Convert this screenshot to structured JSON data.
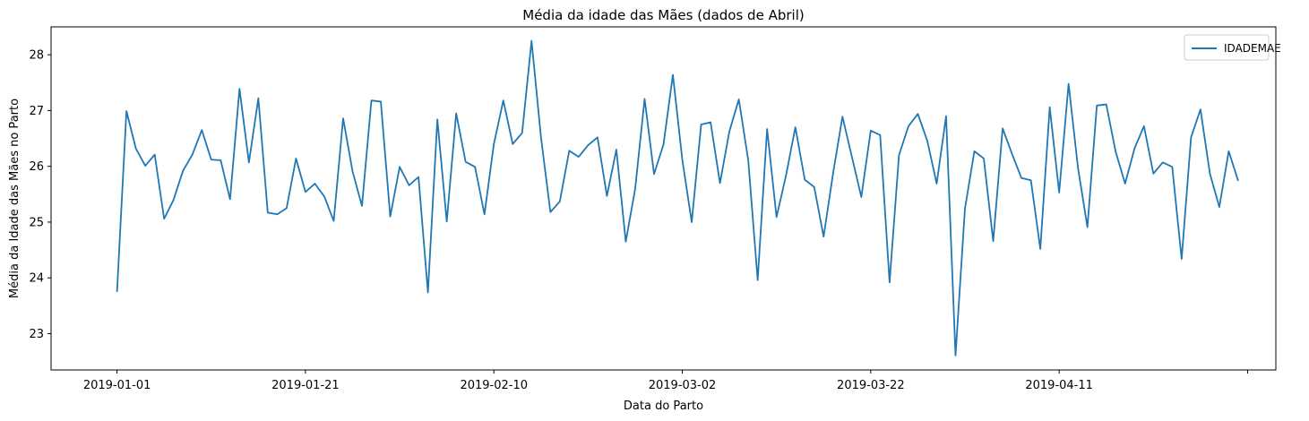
{
  "chart_data": {
    "type": "line",
    "title": "Média da idade das Mães (dados de Abril)",
    "xlabel": "Data do Parto",
    "ylabel": "Média da Idade das Mães no Parto",
    "x_start": "2019-01-01",
    "x_tick_labels": [
      "2019-01-01",
      "2019-01-21",
      "2019-02-10",
      "2019-03-02",
      "2019-03-22",
      "2019-04-11",
      ""
    ],
    "y_ticks": [
      23,
      24,
      25,
      26,
      27,
      28
    ],
    "ylim": [
      22.35,
      28.5
    ],
    "xlim": [
      "2018-12-25",
      "2019-05-04"
    ],
    "grid": false,
    "legend_position": "top-right",
    "series": [
      {
        "name": "IDADEMAE",
        "color": "#1f77b4",
        "values": [
          23.75,
          26.99,
          26.32,
          26.01,
          26.21,
          25.06,
          25.4,
          25.92,
          26.21,
          26.65,
          26.12,
          26.11,
          25.41,
          27.39,
          26.07,
          27.22,
          25.17,
          25.14,
          25.25,
          26.14,
          25.54,
          25.69,
          25.46,
          25.02,
          26.86,
          25.91,
          25.29,
          27.18,
          27.16,
          25.1,
          25.99,
          25.66,
          25.81,
          23.74,
          26.84,
          25.01,
          26.95,
          26.08,
          25.99,
          25.14,
          26.4,
          27.18,
          26.4,
          26.6,
          28.25,
          26.52,
          25.18,
          25.37,
          26.28,
          26.17,
          26.38,
          26.52,
          25.47,
          26.3,
          24.65,
          25.6,
          27.21,
          25.86,
          26.39,
          27.64,
          26.12,
          25.0,
          26.75,
          26.79,
          25.7,
          26.63,
          27.2,
          26.11,
          23.96,
          26.67,
          25.09,
          25.83,
          26.7,
          25.76,
          25.63,
          24.74,
          25.87,
          26.89,
          26.17,
          25.45,
          26.64,
          26.56,
          23.92,
          26.2,
          26.72,
          26.94,
          26.46,
          25.69,
          26.9,
          22.61,
          25.24,
          26.27,
          26.14,
          24.66,
          26.68,
          26.22,
          25.79,
          25.75,
          24.52,
          27.06,
          25.53,
          27.48,
          25.97,
          24.91,
          27.09,
          27.11,
          26.26,
          25.69,
          26.32,
          26.72,
          25.87,
          26.07,
          25.99,
          24.34,
          26.52,
          27.02,
          25.87,
          25.27,
          26.27,
          25.74
        ]
      }
    ]
  }
}
